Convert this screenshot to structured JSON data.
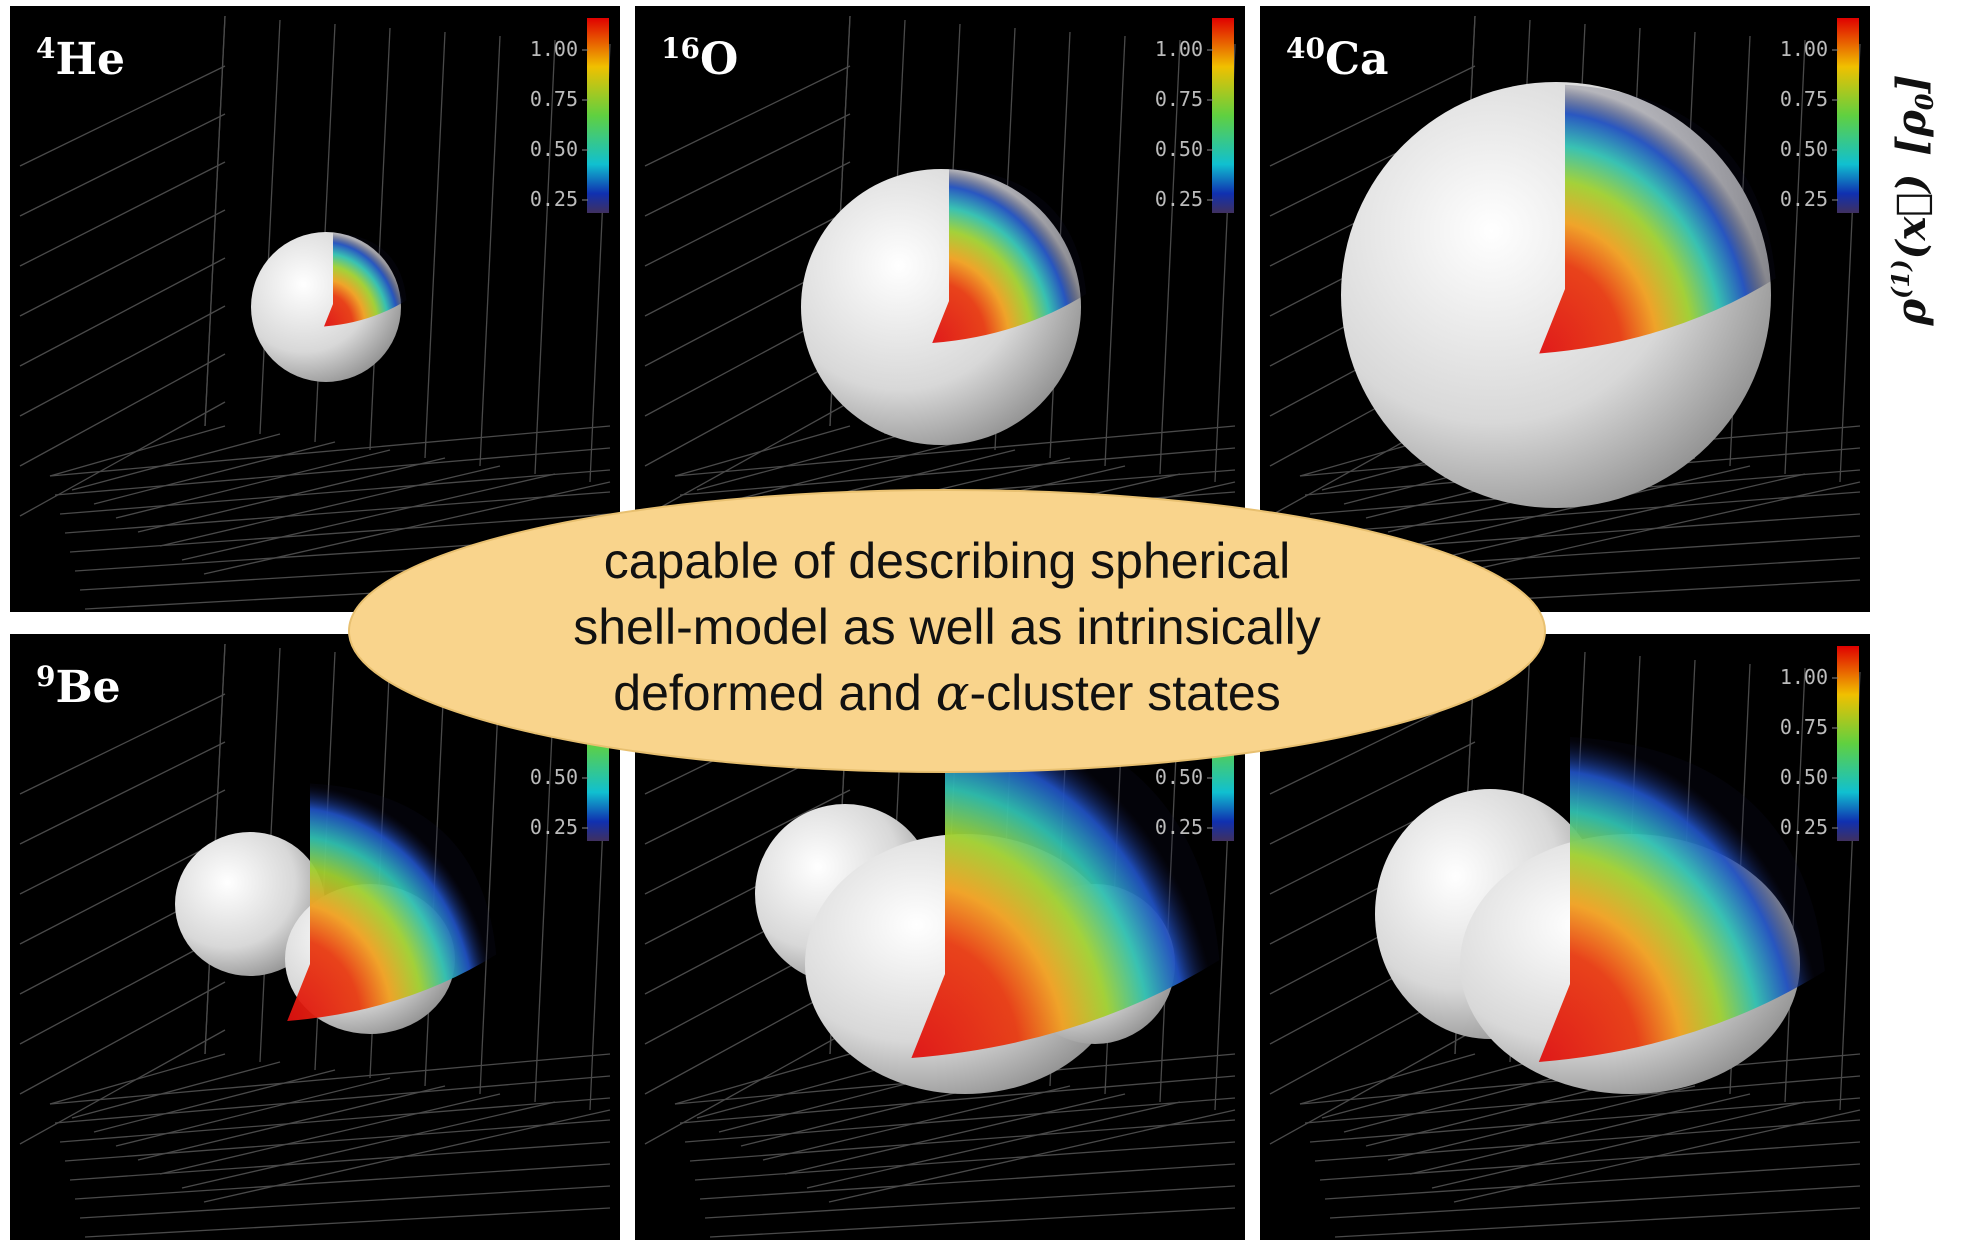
{
  "panels": [
    {
      "mass": "4",
      "element": "He"
    },
    {
      "mass": "16",
      "element": "O"
    },
    {
      "mass": "40",
      "element": "Ca"
    },
    {
      "mass": "9",
      "element": "Be"
    },
    {},
    {}
  ],
  "colorbar": {
    "ticks": [
      "1.00",
      "0.75",
      "0.50",
      "0.25"
    ],
    "label": {
      "symbol": "ρ",
      "sup": "(1)",
      "arg": "(x⃗)",
      "unit": "[ρ",
      "unit_sub": "0",
      "unit_close": "]"
    }
  },
  "callout": {
    "line1": "capable of describing spherical",
    "line2": "shell-model as well as intrinsically",
    "line3_before": "deformed and ",
    "line3_symbol": "α",
    "line3_after": "-cluster states"
  }
}
